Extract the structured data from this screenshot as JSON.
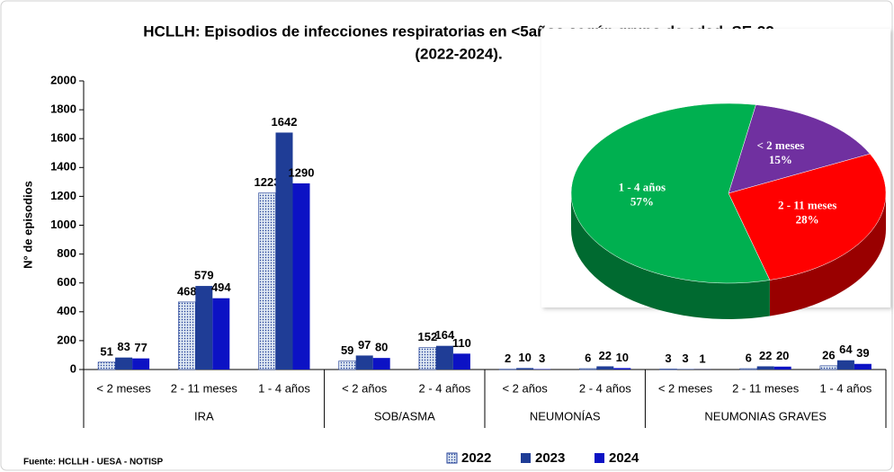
{
  "chart_data": [
    {
      "type": "bar",
      "title": [
        "HCLLH: Episodios de infecciones respiratorias en <5años según grupo de edad, SE-22",
        "(2022-2024)."
      ],
      "ylabel": "N° de episodios",
      "groups": [
        {
          "name": "IRA",
          "categories": [
            "< 2 meses",
            "2 - 11 meses",
            "1 - 4 años"
          ]
        },
        {
          "name": "SOB/ASMA",
          "categories": [
            "< 2 años",
            "2 - 4 años"
          ]
        },
        {
          "name": "NEUMONÍAS",
          "categories": [
            "< 2 años",
            "2 - 4 años"
          ]
        },
        {
          "name": "NEUMONIAS GRAVES",
          "categories": [
            "< 2 meses",
            "2 - 11 meses",
            "1 - 4 años"
          ]
        }
      ],
      "series": [
        {
          "name": "2022",
          "color": "#dbe5f1",
          "pattern": "dots",
          "values": [
            51,
            468,
            1223,
            59,
            152,
            2,
            6,
            3,
            6,
            26
          ]
        },
        {
          "name": "2023",
          "color": "#1f3d96",
          "values": [
            83,
            579,
            1642,
            97,
            164,
            10,
            22,
            3,
            22,
            64
          ]
        },
        {
          "name": "2024",
          "color": "#0c12c4",
          "values": [
            77,
            494,
            1290,
            80,
            110,
            3,
            10,
            1,
            20,
            39
          ]
        }
      ],
      "ylim": [
        0,
        2000
      ],
      "yticks": [
        0,
        200,
        400,
        600,
        800,
        1000,
        1200,
        1400,
        1600,
        1800,
        2000
      ],
      "source": "Fuente:  HCLLH - UESA - NOTISP"
    },
    {
      "type": "pie",
      "categories": [
        "< 2 meses",
        "2 - 11 meses",
        "1 - 4 años"
      ],
      "values": [
        15,
        28,
        57
      ],
      "value_labels": [
        "15%",
        "28%",
        "57%"
      ],
      "colors": [
        "#7030a0",
        "#ff0000",
        "#00b050"
      ],
      "three_d": true
    }
  ]
}
